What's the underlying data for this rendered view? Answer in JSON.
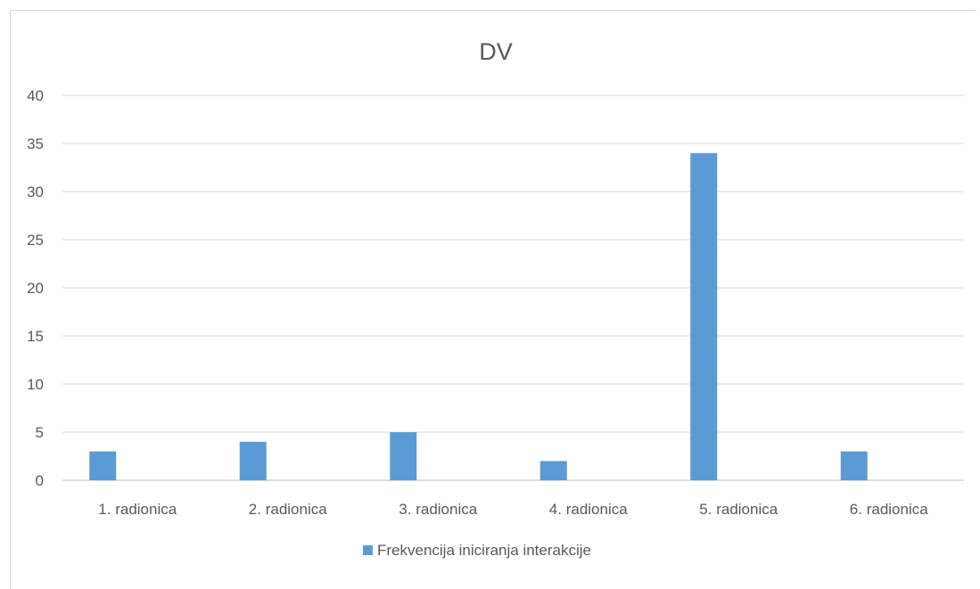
{
  "chart_data": {
    "type": "bar",
    "title": "DV",
    "categories": [
      "1. radionica",
      "2. radionica",
      "3. radionica",
      "4. radionica",
      "5. radionica",
      "6. radionica"
    ],
    "series": [
      {
        "name": "Frekvencija iniciranja interakcije",
        "values": [
          3,
          4,
          5,
          2,
          34,
          3
        ],
        "color": "#5b9bd5"
      }
    ],
    "ylim": [
      0,
      40
    ],
    "yticks": [
      0,
      5,
      10,
      15,
      20,
      25,
      30,
      35,
      40
    ],
    "grid": true,
    "legend_position": "bottom"
  }
}
